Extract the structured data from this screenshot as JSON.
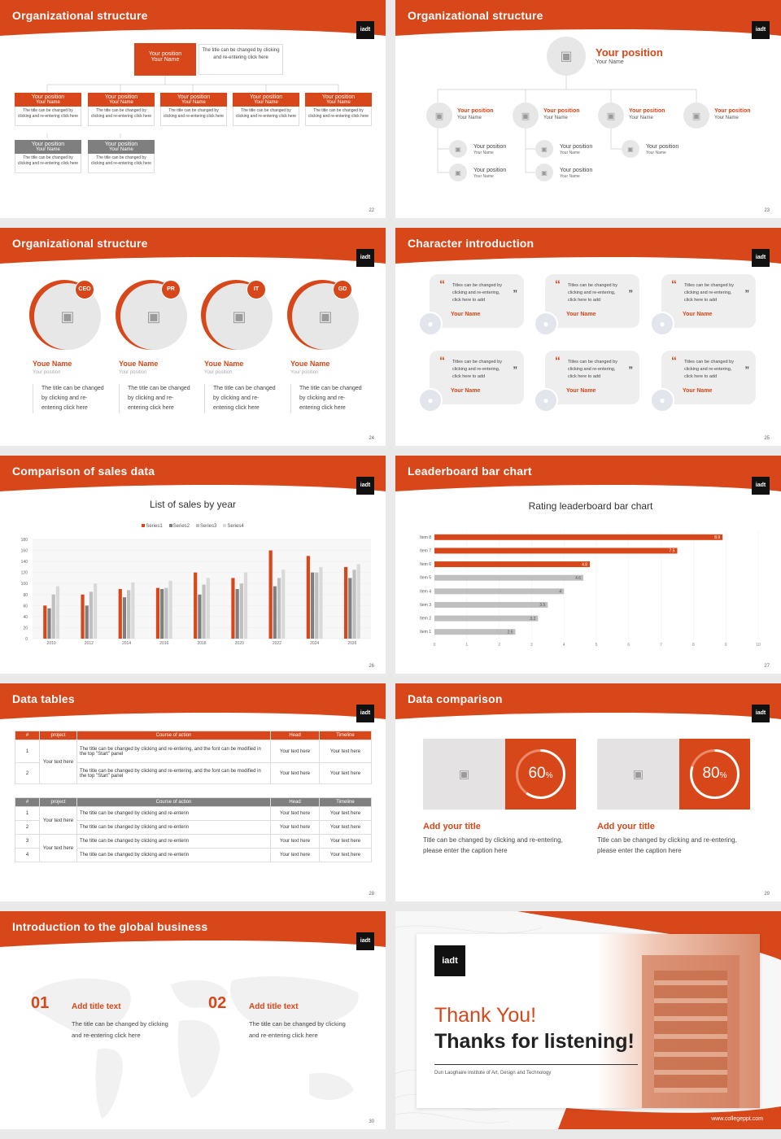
{
  "brand": {
    "accent": "#d8471a",
    "grey": "#7f7f7f",
    "logo_text": "iadt"
  },
  "slides": [
    {
      "title": "Organizational structure",
      "page": "22",
      "top": {
        "position": "Your position",
        "name": "Your Name",
        "note": "The title can be changed by clicking and re-entering click here"
      },
      "row1": [
        {
          "position": "Your position",
          "name": "Your Name",
          "desc": "The title can be changed by clicking and re-entering click here"
        },
        {
          "position": "Your position",
          "name": "Your Name",
          "desc": "The title can be changed by clicking and re-entering click here"
        },
        {
          "position": "Your position",
          "name": "Your Name",
          "desc": "The title can be changed by clicking and re-entering click here"
        },
        {
          "position": "Your position",
          "name": "Your Name",
          "desc": "The title can be changed by clicking and re-entering click here"
        },
        {
          "position": "Your position",
          "name": "Your Name",
          "desc": "The title can be changed by clicking and re-entering click here"
        }
      ],
      "row2": [
        {
          "position": "Your position",
          "name": "Your Name",
          "desc": "The title can be changed by clicking and re-entering click here"
        },
        {
          "position": "Your position",
          "name": "Your Name",
          "desc": "The title can be changed by clicking and re-entering click here"
        }
      ]
    },
    {
      "title": "Organizational structure",
      "page": "23",
      "top": {
        "position": "Your position",
        "name": "Your Name"
      },
      "level2": [
        {
          "position": "Your position",
          "name": "Your Name"
        },
        {
          "position": "Your position",
          "name": "Your Name"
        },
        {
          "position": "Your position",
          "name": "Your Name"
        },
        {
          "position": "Your position",
          "name": "Your Name"
        }
      ],
      "level3": [
        {
          "position": "Your position",
          "name": "Your Name"
        },
        {
          "position": "Your position",
          "name": "Your Name"
        },
        {
          "position": "Your position",
          "name": "Your Name"
        },
        {
          "position": "Your position",
          "name": "Your Name"
        },
        {
          "position": "Your position",
          "name": "Your Name"
        }
      ]
    },
    {
      "title": "Organizational structure",
      "page": "24",
      "members": [
        {
          "badge": "CEO",
          "name": "Youe Name",
          "position": "Your position",
          "desc": "The title can be changed by clicking and re-entering click here"
        },
        {
          "badge": "PR",
          "name": "Youe Name",
          "position": "Your position",
          "desc": "The title can be changed by clicking and re-entering click here"
        },
        {
          "badge": "IT",
          "name": "Youe Name",
          "position": "Your position",
          "desc": "The title can be changed by clicking and re-entering click here"
        },
        {
          "badge": "GD",
          "name": "Youe Name",
          "position": "Your position",
          "desc": "The title can be changed by clicking and re-entering click here"
        }
      ]
    },
    {
      "title": "Character introduction",
      "page": "25",
      "quotes": [
        {
          "text": "Titles can be changed by clicking and re-entering, click here to add",
          "name": "Your Name"
        },
        {
          "text": "Titles can be changed by clicking and re-entering, click here to add",
          "name": "Your Name"
        },
        {
          "text": "Titles can be changed by clicking and re-entering, click here to add",
          "name": "Your Name"
        },
        {
          "text": "Titles can be changed by clicking and re-entering, click here to add",
          "name": "Your Name"
        },
        {
          "text": "Titles can be changed by clicking and re-entering, click here to add",
          "name": "Your Name"
        },
        {
          "text": "Titles can be changed by clicking and re-entering, click here to add",
          "name": "Your Name"
        }
      ]
    },
    {
      "title": "Comparison of sales data",
      "page": "26"
    },
    {
      "title": "Leaderboard bar chart",
      "page": "27"
    },
    {
      "title": "Data tables",
      "page": "28",
      "table1": {
        "headers": [
          "#",
          "project",
          "Course of action",
          "Head",
          "Timeline"
        ],
        "merged": "Your text here",
        "rows": [
          {
            "n": "1",
            "action": "The title can be changed by clicking and re-entering, and the font can be modified in the top \"Start\" panel",
            "head": "Your text here",
            "time": "Your text here"
          },
          {
            "n": "2",
            "action": "The title can be changed by clicking and re-entering, and the font can be modified in the top \"Start\" panel",
            "head": "Your text here",
            "time": "Your text here"
          }
        ]
      },
      "table2": {
        "headers": [
          "#",
          "project",
          "Course of action",
          "Head",
          "Timeline"
        ],
        "merged1": "Your text here",
        "merged2": "Your text here",
        "rows": [
          {
            "n": "1",
            "action": "The title can be changed by clicking and re-enterin",
            "head": "Your text here",
            "time": "Your text here"
          },
          {
            "n": "2",
            "action": "The title can be changed by clicking and re-enterin",
            "head": "Your text here",
            "time": "Your text here"
          },
          {
            "n": "3",
            "action": "The title can be changed by clicking and re-enterin",
            "head": "Your text here",
            "time": "Your text here"
          },
          {
            "n": "4",
            "action": "The title can be changed by clicking and re-enterin",
            "head": "Your text here",
            "time": "Your text here"
          }
        ]
      }
    },
    {
      "title": "Data comparison",
      "page": "29",
      "cards": [
        {
          "percent": "60",
          "unit": "%",
          "fraction": 0.6,
          "title": "Add your title",
          "desc": "Title can be changed by clicking and re-entering, please enter the caption here"
        },
        {
          "percent": "80",
          "unit": "%",
          "fraction": 0.8,
          "title": "Add your title",
          "desc": "Title can be changed by clicking and re-entering, please enter the caption here"
        }
      ]
    },
    {
      "title": "Introduction to the global business",
      "page": "30",
      "items": [
        {
          "num": "01",
          "title": "Add title text",
          "desc": "The title can be changed by clicking and re-entering click here"
        },
        {
          "num": "02",
          "title": "Add title text",
          "desc": "The title can be changed by clicking and re-entering click here"
        }
      ]
    },
    {
      "thanks1": "Thank You!",
      "thanks2": "Thanks for listening!",
      "subtitle": "Dun Laoghaire Institute of Art, Design and Technology",
      "url": "www.collegeppt.com"
    }
  ],
  "chart_data": [
    {
      "type": "bar",
      "title": "List of sales by year",
      "categories": [
        "2010",
        "2012",
        "2014",
        "2016",
        "2018",
        "2020",
        "2022",
        "2024",
        "2026"
      ],
      "ylim": [
        0,
        180
      ],
      "yticks": [
        0,
        20,
        40,
        60,
        80,
        100,
        120,
        140,
        160,
        180
      ],
      "legend": "top",
      "series": [
        {
          "name": "Series1",
          "color": "#d8471a",
          "values": [
            60,
            80,
            90,
            92,
            120,
            110,
            160,
            150,
            130
          ]
        },
        {
          "name": "Series2",
          "color": "#7f7f7f",
          "values": [
            55,
            60,
            75,
            90,
            80,
            90,
            95,
            120,
            110
          ]
        },
        {
          "name": "Series3",
          "color": "#bfbfbf",
          "values": [
            80,
            85,
            88,
            92,
            98,
            100,
            110,
            120,
            125
          ]
        },
        {
          "name": "Series4",
          "color": "#d9d9d9",
          "values": [
            95,
            100,
            102,
            105,
            110,
            120,
            125,
            130,
            135
          ]
        }
      ]
    },
    {
      "type": "bar",
      "orientation": "horizontal",
      "title": "Rating leaderboard bar chart",
      "categories": [
        "Item 8",
        "Item 7",
        "Item 6",
        "Item 5",
        "Item 4",
        "Item 3",
        "Item 2",
        "Item 1"
      ],
      "values": [
        8.9,
        7.5,
        4.8,
        4.6,
        4,
        3.5,
        3.2,
        2.5
      ],
      "colors": [
        "#d8471a",
        "#d8471a",
        "#d8471a",
        "#bfbfbf",
        "#bfbfbf",
        "#bfbfbf",
        "#bfbfbf",
        "#bfbfbf"
      ],
      "xlim": [
        0,
        10
      ],
      "xticks": [
        "0",
        "1",
        "2",
        "3",
        "4",
        "5",
        "6",
        "7",
        "8",
        "9",
        "10"
      ]
    }
  ]
}
